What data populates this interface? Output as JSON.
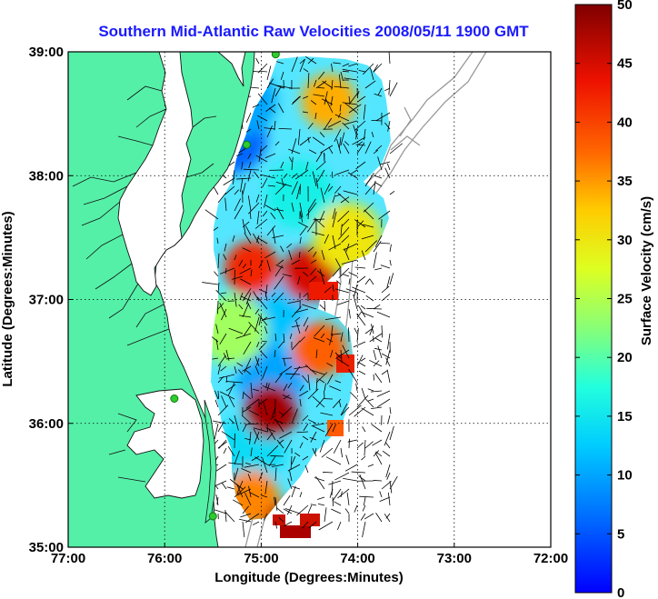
{
  "title": "Southern Mid-Atlantic Raw Velocities 2008/05/11 1900 GMT",
  "axes": {
    "xlabel": "Longitude (Degrees:Minutes)",
    "ylabel": "Latitude (Degrees:Minutes)",
    "xticks": [
      "77:00",
      "76:00",
      "75:00",
      "74:00",
      "73:00",
      "72:00"
    ],
    "yticks": [
      "39:00",
      "38:00",
      "37:00",
      "36:00",
      "35:00"
    ],
    "xlim": [
      -77,
      -72
    ],
    "ylim": [
      35,
      39
    ],
    "grid": "dotted"
  },
  "colorbar": {
    "label": "Surface Velocity (cm/s)",
    "ticks": [
      "50",
      "45",
      "40",
      "35",
      "30",
      "25",
      "20",
      "15",
      "10",
      "5",
      "0"
    ],
    "range": [
      0,
      50
    ],
    "colormap": "jet"
  },
  "colors": {
    "land": "#55f0a8",
    "title": "#1a1aff",
    "coastline": "#000000",
    "bathymetry": "#999999",
    "station": "#2ecc2e"
  },
  "chart_data": {
    "type": "heatmap",
    "description_units": "longitude, latitude in degrees; velocity in cm/s",
    "hotspots": [
      {
        "lon": -74.9,
        "lat": 36.1,
        "speed": 48
      },
      {
        "lon": -74.5,
        "lat": 37.2,
        "speed": 45
      },
      {
        "lon": -75.1,
        "lat": 37.25,
        "speed": 42
      },
      {
        "lon": -74.4,
        "lat": 36.6,
        "speed": 38
      },
      {
        "lon": -74.3,
        "lat": 38.6,
        "speed": 34
      },
      {
        "lon": -75.1,
        "lat": 35.4,
        "speed": 36
      },
      {
        "lon": -74.7,
        "lat": 35.15,
        "speed": 48
      },
      {
        "lon": -75.3,
        "lat": 36.75,
        "speed": 24
      },
      {
        "lon": -74.1,
        "lat": 37.5,
        "speed": 30
      }
    ],
    "calm_areas": [
      {
        "lon": -75.3,
        "lat": 38.3,
        "speed": 6
      },
      {
        "lon": -75.2,
        "lat": 38.6,
        "speed": 10
      },
      {
        "lon": -74.9,
        "lat": 36.9,
        "speed": 12
      },
      {
        "lon": -74.9,
        "lat": 36.35,
        "speed": 10
      },
      {
        "lon": -74.6,
        "lat": 37.85,
        "speed": 16
      },
      {
        "lon": -75.1,
        "lat": 35.8,
        "speed": 14
      }
    ],
    "stations": [
      {
        "lon": -74.85,
        "lat": 38.98
      },
      {
        "lon": -75.15,
        "lat": 38.25
      },
      {
        "lon": -75.9,
        "lat": 36.2
      },
      {
        "lon": -75.5,
        "lat": 35.25
      }
    ]
  }
}
